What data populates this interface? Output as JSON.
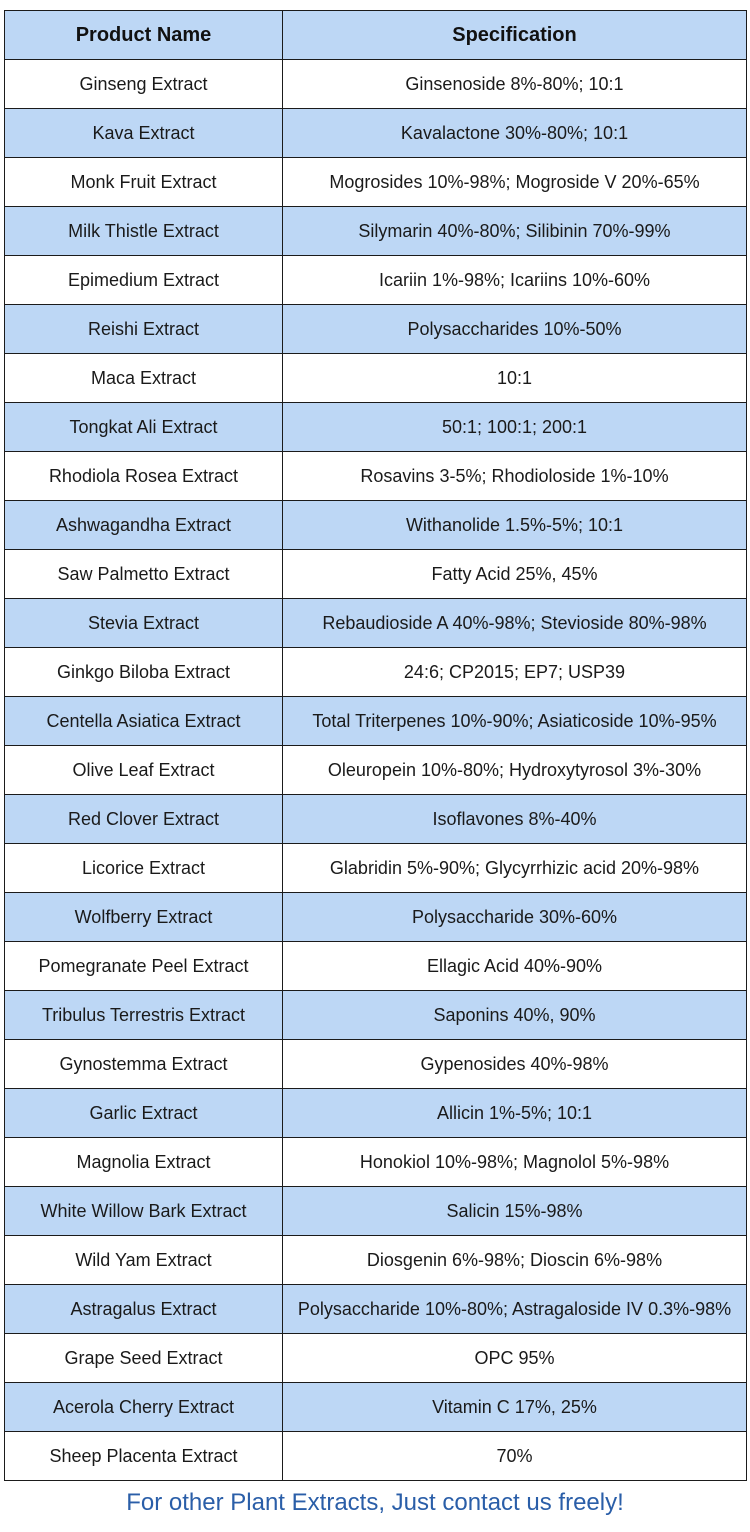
{
  "table": {
    "headers": [
      "Product Name",
      "Specification"
    ],
    "colors": {
      "header_fill": "#bdd7f5",
      "shaded_row_fill": "#bdd7f5",
      "plain_row_fill": "#ffffff",
      "border": "#1b1b1b"
    },
    "rows": [
      {
        "name": "Ginseng Extract",
        "spec": "Ginsenoside 8%-80%; 10:1"
      },
      {
        "name": "Kava Extract",
        "spec": "Kavalactone 30%-80%; 10:1"
      },
      {
        "name": "Monk Fruit Extract",
        "spec": "Mogrosides 10%-98%; Mogroside V 20%-65%"
      },
      {
        "name": "Milk Thistle Extract",
        "spec": "Silymarin 40%-80%; Silibinin 70%-99%"
      },
      {
        "name": "Epimedium Extract",
        "spec": "Icariin 1%-98%; Icariins 10%-60%"
      },
      {
        "name": "Reishi Extract",
        "spec": "Polysaccharides 10%-50%"
      },
      {
        "name": "Maca Extract",
        "spec": "10:1"
      },
      {
        "name": "Tongkat Ali Extract",
        "spec": "50:1; 100:1; 200:1"
      },
      {
        "name": "Rhodiola Rosea Extract",
        "spec": "Rosavins 3-5%; Rhodioloside 1%-10%"
      },
      {
        "name": "Ashwagandha Extract",
        "spec": "Withanolide 1.5%-5%; 10:1"
      },
      {
        "name": "Saw Palmetto Extract",
        "spec": "Fatty Acid 25%, 45%"
      },
      {
        "name": "Stevia Extract",
        "spec": "Rebaudioside A 40%-98%; Stevioside 80%-98%"
      },
      {
        "name": "Ginkgo Biloba Extract",
        "spec": "24:6; CP2015; EP7; USP39"
      },
      {
        "name": "Centella Asiatica Extract",
        "spec": "Total Triterpenes 10%-90%; Asiaticoside 10%-95%"
      },
      {
        "name": "Olive Leaf Extract",
        "spec": "Oleuropein 10%-80%; Hydroxytyrosol 3%-30%"
      },
      {
        "name": "Red Clover Extract",
        "spec": "Isoflavones 8%-40%"
      },
      {
        "name": "Licorice Extract",
        "spec": "Glabridin 5%-90%; Glycyrrhizic acid 20%-98%"
      },
      {
        "name": "Wolfberry Extract",
        "spec": "Polysaccharide 30%-60%"
      },
      {
        "name": "Pomegranate Peel Extract",
        "spec": "Ellagic Acid 40%-90%"
      },
      {
        "name": "Tribulus Terrestris Extract",
        "spec": "Saponins 40%, 90%"
      },
      {
        "name": "Gynostemma Extract",
        "spec": "Gypenosides 40%-98%"
      },
      {
        "name": "Garlic Extract",
        "spec": "Allicin 1%-5%; 10:1"
      },
      {
        "name": "Magnolia Extract",
        "spec": "Honokiol 10%-98%; Magnolol 5%-98%"
      },
      {
        "name": "White Willow Bark Extract",
        "spec": "Salicin 15%-98%"
      },
      {
        "name": "Wild Yam Extract",
        "spec": "Diosgenin 6%-98%; Dioscin 6%-98%"
      },
      {
        "name": "Astragalus Extract",
        "spec": "Polysaccharide 10%-80%; Astragaloside IV 0.3%-98%"
      },
      {
        "name": "Grape Seed Extract",
        "spec": "OPC 95%"
      },
      {
        "name": "Acerola Cherry Extract",
        "spec": "Vitamin C 17%, 25%"
      },
      {
        "name": "Sheep Placenta Extract",
        "spec": "70%"
      }
    ]
  },
  "footer": {
    "text": "For other Plant Extracts, Just contact us freely!",
    "color": "#2a5ea8"
  }
}
